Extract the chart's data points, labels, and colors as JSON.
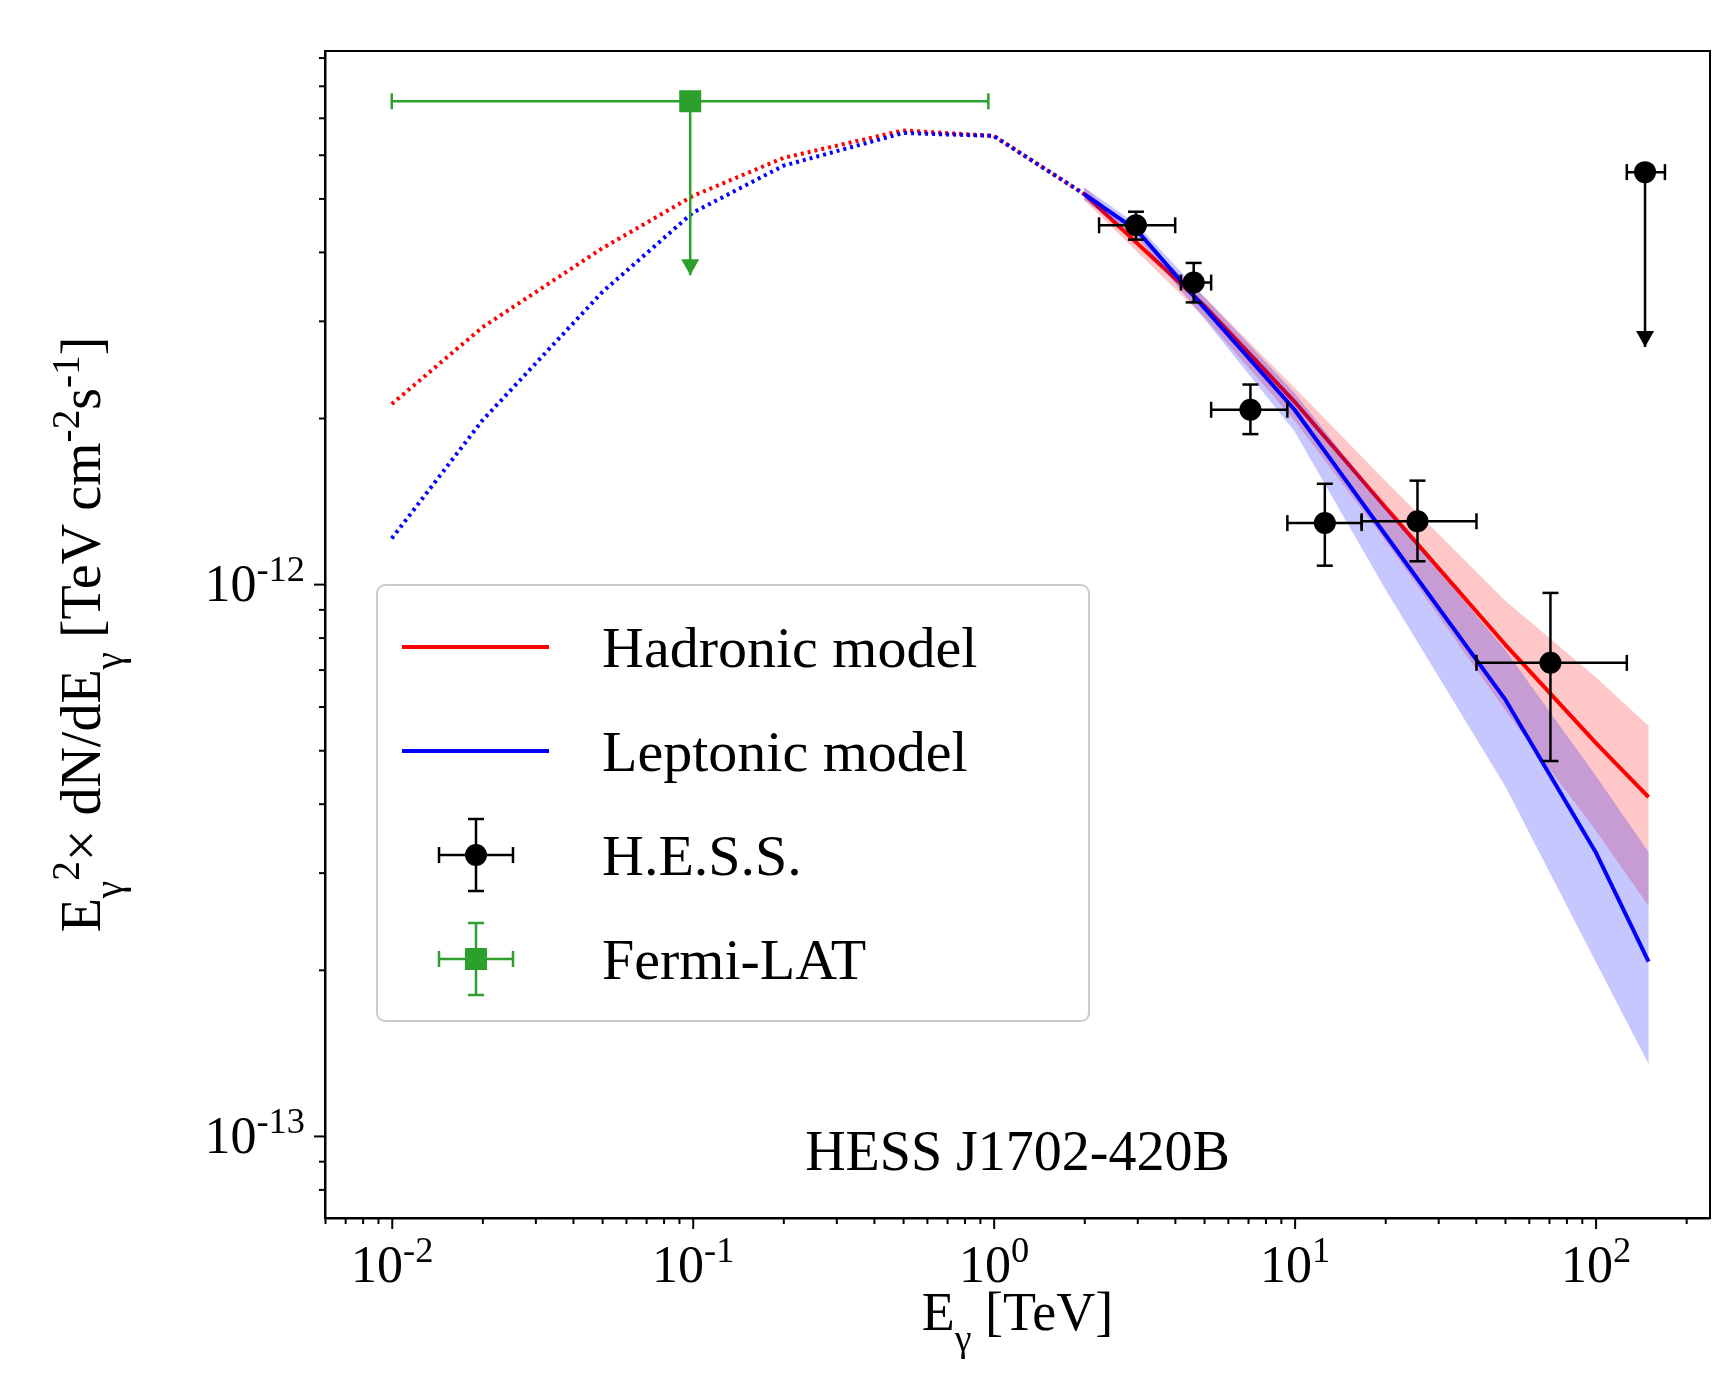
{
  "chart_data": {
    "type": "line",
    "xlabel": "E$_{γ}$ [TeV]",
    "ylabel": "E$_{γ}$$^{2}$× dN/dE$_{γ}$ [TeV cm$^{-2}$s$^{-1}$]",
    "log": "xy",
    "legend": "lower left",
    "annotations": [
      "HESS J1702-420B"
    ],
    "xlim": [
      0.006,
      240
    ],
    "ylim": [
      7.1e-14,
      9.25e-12
    ],
    "xticks": [
      {
        "value": 0.006,
        "label": null
      },
      {
        "value": 0.007,
        "label": null
      },
      {
        "value": 0.008,
        "label": null
      },
      {
        "value": 0.009,
        "label": null
      },
      {
        "value": 0.01,
        "label": "10$^{-2}$"
      },
      {
        "value": 0.02,
        "label": null
      },
      {
        "value": 0.03,
        "label": null
      },
      {
        "value": 0.04,
        "label": null
      },
      {
        "value": 0.05,
        "label": null
      },
      {
        "value": 0.06,
        "label": null
      },
      {
        "value": 0.07,
        "label": null
      },
      {
        "value": 0.08,
        "label": null
      },
      {
        "value": 0.09,
        "label": null
      },
      {
        "value": 0.1,
        "label": "10$^{-1}$"
      },
      {
        "value": 0.2,
        "label": null
      },
      {
        "value": 0.3,
        "label": null
      },
      {
        "value": 0.4,
        "label": null
      },
      {
        "value": 0.5,
        "label": null
      },
      {
        "value": 0.6,
        "label": null
      },
      {
        "value": 0.7,
        "label": null
      },
      {
        "value": 0.8,
        "label": null
      },
      {
        "value": 0.9,
        "label": null
      },
      {
        "value": 1,
        "label": "10$^{0}$"
      },
      {
        "value": 2,
        "label": null
      },
      {
        "value": 3,
        "label": null
      },
      {
        "value": 4,
        "label": null
      },
      {
        "value": 5,
        "label": null
      },
      {
        "value": 6,
        "label": null
      },
      {
        "value": 7,
        "label": null
      },
      {
        "value": 8,
        "label": null
      },
      {
        "value": 9,
        "label": null
      },
      {
        "value": 10,
        "label": "10$^{1}$"
      },
      {
        "value": 20,
        "label": null
      },
      {
        "value": 30,
        "label": null
      },
      {
        "value": 40,
        "label": null
      },
      {
        "value": 50,
        "label": null
      },
      {
        "value": 60,
        "label": null
      },
      {
        "value": 70,
        "label": null
      },
      {
        "value": 80,
        "label": null
      },
      {
        "value": 90,
        "label": null
      },
      {
        "value": 100,
        "label": "10$^{2}$"
      },
      {
        "value": 200,
        "label": null
      }
    ],
    "yticks": [
      {
        "value": 8e-14,
        "label": null
      },
      {
        "value": 9e-14,
        "label": null
      },
      {
        "value": 1e-13,
        "label": "10$^{-13}$"
      },
      {
        "value": 2e-13,
        "label": null
      },
      {
        "value": 3e-13,
        "label": null
      },
      {
        "value": 4e-13,
        "label": null
      },
      {
        "value": 5e-13,
        "label": null
      },
      {
        "value": 6e-13,
        "label": null
      },
      {
        "value": 7e-13,
        "label": null
      },
      {
        "value": 8e-13,
        "label": null
      },
      {
        "value": 9e-13,
        "label": null
      },
      {
        "value": 1e-12,
        "label": "10$^{-12}$"
      },
      {
        "value": 2e-12,
        "label": null
      },
      {
        "value": 3e-12,
        "label": null
      },
      {
        "value": 4e-12,
        "label": null
      },
      {
        "value": 5e-12,
        "label": null
      },
      {
        "value": 6e-12,
        "label": null
      },
      {
        "value": 7e-12,
        "label": null
      },
      {
        "value": 8e-12,
        "label": null
      },
      {
        "value": 9e-12,
        "label": null
      }
    ],
    "series": [
      {
        "color": "#ff0000",
        "line_style": "dotted",
        "x": [
          0.01,
          0.02,
          0.05,
          0.1,
          0.2,
          0.5,
          1,
          2
        ],
        "values": [
          2.12e-12,
          2.92e-12,
          4.06e-12,
          5.05e-12,
          5.92e-12,
          6.64e-12,
          6.49e-12,
          5.09e-12
        ]
      },
      {
        "color": "#0000ff",
        "line_style": "dotted",
        "x": [
          0.01,
          0.02,
          0.05,
          0.1,
          0.2,
          0.5,
          1,
          2
        ],
        "values": [
          1.21e-12,
          1.98e-12,
          3.38e-12,
          4.71e-12,
          5.73e-12,
          6.57e-12,
          6.49e-12,
          5.09e-12
        ]
      },
      {
        "name": "Hadronic model",
        "color": "#ff0000",
        "line_style": "solid",
        "x": [
          2,
          5,
          10,
          20,
          50,
          100,
          150
        ],
        "values": [
          5.09e-12,
          3.2e-12,
          2.14e-12,
          1.38e-12,
          7.78e-13,
          5.16e-13,
          4.11e-13
        ],
        "lower": [
          4.96e-12,
          3.05e-12,
          1.98e-12,
          1.2e-12,
          5.92e-13,
          3.58e-13,
          2.61e-13
        ],
        "upper": [
          5.24e-12,
          3.32e-12,
          2.27e-12,
          1.54e-12,
          9.34e-13,
          6.79e-13,
          5.53e-13
        ]
      },
      {
        "name": "Leptonic model",
        "color": "#0000ff",
        "line_style": "solid",
        "x": [
          2,
          3,
          5,
          10,
          20,
          50,
          100,
          150
        ],
        "values": [
          5.09e-12,
          4.37e-12,
          3.17e-12,
          2.07e-12,
          1.23e-12,
          6.19e-13,
          3.27e-13,
          2.07e-13
        ],
        "lower": [
          4.96e-12,
          4.25e-12,
          3.03e-12,
          1.89e-12,
          9.8e-13,
          4.31e-13,
          2.07e-13,
          1.35e-13
        ],
        "upper": [
          5.24e-12,
          4.48e-12,
          3.32e-12,
          2.22e-12,
          1.38e-12,
          7.61e-13,
          4.5e-13,
          3.27e-13
        ]
      },
      {
        "name": "H.E.S.S.",
        "type": "scatter",
        "marker": "circle",
        "color": "#000000",
        "x": [
          2.97,
          4.62,
          7.13,
          12.6,
          25.6,
          70.8,
          146
        ],
        "values": [
          4.47e-12,
          3.52e-12,
          2.07e-12,
          1.29e-12,
          1.3e-12,
          7.2e-13,
          5.58e-12
        ],
        "errors": [
          [
            4.21e-12,
            4.73e-12
          ],
          [
            3.24e-12,
            3.82e-12
          ],
          [
            1.87e-12,
            2.3e-12
          ],
          [
            1.08e-12,
            1.52e-12
          ],
          [
            1.1e-12,
            1.54e-12
          ],
          [
            4.78e-13,
            9.64e-13
          ],
          [
            2.69e-12,
            5.58e-12
          ]
        ],
        "xerrors": [
          [
            2.24,
            4.01
          ],
          [
            4.19,
            5.28
          ],
          [
            5.28,
            9.46
          ],
          [
            9.46,
            16.7
          ],
          [
            16.7,
            40.2
          ],
          [
            40.2,
            127
          ],
          [
            127,
            170
          ]
        ]
      },
      {
        "name": "Fermi-LAT",
        "type": "scatter",
        "marker": "square",
        "color": "#2ca02c",
        "x": [
          0.0981
        ],
        "values": [
          7.5e-12
        ],
        "errors": [
          [
            3.63e-12,
            7.5e-12
          ]
        ],
        "xerrors": [
          [
            0.01,
            0.96
          ]
        ]
      }
    ]
  }
}
